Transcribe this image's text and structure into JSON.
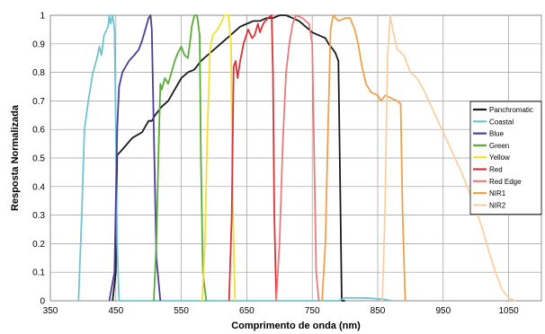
{
  "chart_data": {
    "type": "line",
    "title": "",
    "xlabel": "Comprimento de onda (nm)",
    "ylabel": "Resposta Normalizada",
    "xlim": [
      350,
      1100
    ],
    "ylim": [
      0,
      1
    ],
    "x_ticks": [
      "350",
      "450",
      "550",
      "650",
      "750",
      "850",
      "950",
      "1050"
    ],
    "x_tick_values": [
      350,
      450,
      550,
      650,
      750,
      850,
      950,
      1050
    ],
    "y_ticks": [
      "0",
      "0.1",
      "0.2",
      "0.3",
      "0.4",
      "0.5",
      "0.6",
      "0.7",
      "0.8",
      "0.9",
      "1"
    ],
    "y_tick_values": [
      0,
      0.1,
      0.2,
      0.3,
      0.4,
      0.5,
      0.6,
      0.7,
      0.8,
      0.9,
      1
    ],
    "grid": true,
    "legend_position": "right",
    "series": [
      {
        "name": "Panchromatic",
        "color": "#1a1a1a",
        "points": [
          [
            445,
            0
          ],
          [
            450,
            0.1
          ],
          [
            452,
            0.51
          ],
          [
            460,
            0.53
          ],
          [
            475,
            0.57
          ],
          [
            490,
            0.59
          ],
          [
            500,
            0.63
          ],
          [
            505,
            0.63
          ],
          [
            510,
            0.65
          ],
          [
            520,
            0.68
          ],
          [
            530,
            0.7
          ],
          [
            540,
            0.74
          ],
          [
            550,
            0.78
          ],
          [
            560,
            0.8
          ],
          [
            570,
            0.81
          ],
          [
            580,
            0.84
          ],
          [
            590,
            0.86
          ],
          [
            600,
            0.88
          ],
          [
            610,
            0.9
          ],
          [
            620,
            0.92
          ],
          [
            630,
            0.94
          ],
          [
            640,
            0.96
          ],
          [
            650,
            0.97
          ],
          [
            660,
            0.98
          ],
          [
            670,
            0.98
          ],
          [
            680,
            0.99
          ],
          [
            690,
            0.99
          ],
          [
            700,
            1.0
          ],
          [
            710,
            1.0
          ],
          [
            720,
            0.99
          ],
          [
            730,
            0.98
          ],
          [
            740,
            0.96
          ],
          [
            750,
            0.94
          ],
          [
            760,
            0.93
          ],
          [
            770,
            0.92
          ],
          [
            775,
            0.9
          ],
          [
            785,
            0.87
          ],
          [
            790,
            0.84
          ],
          [
            792,
            0.5
          ],
          [
            795,
            0
          ],
          [
            800,
            0
          ]
        ]
      },
      {
        "name": "Coastal",
        "color": "#72c3d0",
        "points": [
          [
            393,
            0
          ],
          [
            398,
            0.3
          ],
          [
            402,
            0.6
          ],
          [
            408,
            0.7
          ],
          [
            415,
            0.8
          ],
          [
            420,
            0.84
          ],
          [
            425,
            0.89
          ],
          [
            428,
            0.86
          ],
          [
            432,
            0.93
          ],
          [
            438,
            0.96
          ],
          [
            440,
            1.0
          ],
          [
            442,
            0.97
          ],
          [
            445,
            1.0
          ],
          [
            448,
            0.95
          ],
          [
            450,
            0.6
          ],
          [
            452,
            0.2
          ],
          [
            455,
            0
          ],
          [
            790,
            0
          ],
          [
            800,
            0.01
          ],
          [
            830,
            0.01
          ],
          [
            860,
            0.005
          ],
          [
            870,
            0
          ]
        ]
      },
      {
        "name": "Blue",
        "color": "#4d3c9c",
        "points": [
          [
            440,
            0
          ],
          [
            448,
            0.1
          ],
          [
            452,
            0.6
          ],
          [
            455,
            0.75
          ],
          [
            460,
            0.8
          ],
          [
            465,
            0.82
          ],
          [
            470,
            0.84
          ],
          [
            478,
            0.86
          ],
          [
            485,
            0.88
          ],
          [
            490,
            0.91
          ],
          [
            495,
            0.95
          ],
          [
            500,
            0.99
          ],
          [
            503,
            1.0
          ],
          [
            505,
            0.95
          ],
          [
            508,
            0.6
          ],
          [
            512,
            0.15
          ],
          [
            518,
            0
          ]
        ]
      },
      {
        "name": "Green",
        "color": "#5aac38",
        "points": [
          [
            508,
            0
          ],
          [
            512,
            0.2
          ],
          [
            515,
            0.5
          ],
          [
            518,
            0.76
          ],
          [
            520,
            0.74
          ],
          [
            525,
            0.78
          ],
          [
            530,
            0.76
          ],
          [
            535,
            0.8
          ],
          [
            540,
            0.84
          ],
          [
            545,
            0.87
          ],
          [
            550,
            0.89
          ],
          [
            555,
            0.86
          ],
          [
            560,
            0.85
          ],
          [
            563,
            0.9
          ],
          [
            566,
            0.96
          ],
          [
            570,
            1.0
          ],
          [
            574,
            1.0
          ],
          [
            578,
            0.93
          ],
          [
            580,
            0.5
          ],
          [
            583,
            0.1
          ],
          [
            588,
            0
          ]
        ]
      },
      {
        "name": "Yellow",
        "color": "#f2e030",
        "points": [
          [
            582,
            0
          ],
          [
            586,
            0.2
          ],
          [
            590,
            0.6
          ],
          [
            594,
            0.88
          ],
          [
            598,
            0.93
          ],
          [
            605,
            0.95
          ],
          [
            610,
            0.97
          ],
          [
            616,
            1.0
          ],
          [
            622,
            1.0
          ],
          [
            626,
            0.9
          ],
          [
            628,
            0.4
          ],
          [
            632,
            0
          ]
        ]
      },
      {
        "name": "Red",
        "color": "#d93338",
        "points": [
          [
            623,
            0
          ],
          [
            627,
            0.3
          ],
          [
            630,
            0.82
          ],
          [
            633,
            0.84
          ],
          [
            636,
            0.78
          ],
          [
            640,
            0.84
          ],
          [
            645,
            0.9
          ],
          [
            652,
            0.95
          ],
          [
            658,
            0.92
          ],
          [
            662,
            0.93
          ],
          [
            667,
            0.97
          ],
          [
            670,
            0.94
          ],
          [
            675,
            0.97
          ],
          [
            682,
            0.99
          ],
          [
            688,
            1.0
          ],
          [
            690,
            0.8
          ],
          [
            692,
            0.3
          ],
          [
            695,
            0
          ]
        ]
      },
      {
        "name": "Red Edge",
        "color": "#ea7a7a",
        "points": [
          [
            695,
            0
          ],
          [
            700,
            0.2
          ],
          [
            705,
            0.55
          ],
          [
            710,
            0.8
          ],
          [
            715,
            0.9
          ],
          [
            720,
            0.97
          ],
          [
            725,
            1.0
          ],
          [
            735,
            0.99
          ],
          [
            745,
            0.97
          ],
          [
            750,
            0.9
          ],
          [
            753,
            0.5
          ],
          [
            756,
            0.1
          ],
          [
            760,
            0
          ]
        ]
      },
      {
        "name": "NIR1",
        "color": "#f0a04a",
        "points": [
          [
            765,
            0
          ],
          [
            770,
            0.2
          ],
          [
            774,
            0.6
          ],
          [
            778,
            0.95
          ],
          [
            782,
            1.0
          ],
          [
            790,
            0.98
          ],
          [
            800,
            0.99
          ],
          [
            808,
            0.99
          ],
          [
            815,
            0.95
          ],
          [
            820,
            0.9
          ],
          [
            826,
            0.82
          ],
          [
            832,
            0.76
          ],
          [
            840,
            0.73
          ],
          [
            850,
            0.72
          ],
          [
            855,
            0.7
          ],
          [
            862,
            0.72
          ],
          [
            870,
            0.71
          ],
          [
            880,
            0.7
          ],
          [
            885,
            0.69
          ],
          [
            888,
            0.3
          ],
          [
            892,
            0
          ]
        ]
      },
      {
        "name": "NIR2",
        "color": "#fbcfa6",
        "points": [
          [
            857,
            0
          ],
          [
            861,
            0.3
          ],
          [
            865,
            0.85
          ],
          [
            869,
            1.0
          ],
          [
            873,
            0.95
          ],
          [
            880,
            0.88
          ],
          [
            890,
            0.86
          ],
          [
            900,
            0.8
          ],
          [
            910,
            0.78
          ],
          [
            920,
            0.74
          ],
          [
            930,
            0.69
          ],
          [
            940,
            0.64
          ],
          [
            950,
            0.59
          ],
          [
            960,
            0.54
          ],
          [
            970,
            0.49
          ],
          [
            980,
            0.44
          ],
          [
            990,
            0.38
          ],
          [
            1000,
            0.32
          ],
          [
            1010,
            0.25
          ],
          [
            1020,
            0.17
          ],
          [
            1030,
            0.1
          ],
          [
            1040,
            0.04
          ],
          [
            1050,
            0.01
          ],
          [
            1060,
            0
          ]
        ]
      }
    ]
  }
}
